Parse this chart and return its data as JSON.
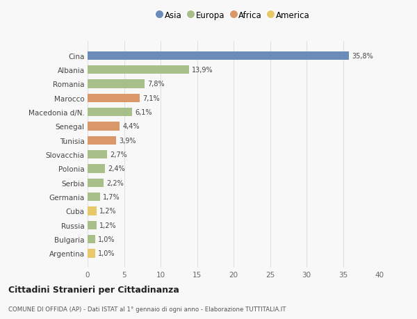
{
  "categories": [
    "Cina",
    "Albania",
    "Romania",
    "Marocco",
    "Macedonia d/N.",
    "Senegal",
    "Tunisia",
    "Slovacchia",
    "Polonia",
    "Serbia",
    "Germania",
    "Cuba",
    "Russia",
    "Bulgaria",
    "Argentina"
  ],
  "values": [
    35.8,
    13.9,
    7.8,
    7.1,
    6.1,
    4.4,
    3.9,
    2.7,
    2.4,
    2.2,
    1.7,
    1.2,
    1.2,
    1.0,
    1.0
  ],
  "labels": [
    "35,8%",
    "13,9%",
    "7,8%",
    "7,1%",
    "6,1%",
    "4,4%",
    "3,9%",
    "2,7%",
    "2,4%",
    "2,2%",
    "1,7%",
    "1,2%",
    "1,2%",
    "1,0%",
    "1,0%"
  ],
  "colors": [
    "#6b8cba",
    "#a8bf8a",
    "#a8bf8a",
    "#d9976a",
    "#a8bf8a",
    "#d9976a",
    "#d9976a",
    "#a8bf8a",
    "#a8bf8a",
    "#a8bf8a",
    "#a8bf8a",
    "#e8c96a",
    "#a8bf8a",
    "#a8bf8a",
    "#e8c96a"
  ],
  "legend_labels": [
    "Asia",
    "Europa",
    "Africa",
    "America"
  ],
  "legend_colors": [
    "#6b8cba",
    "#a8bf8a",
    "#d9976a",
    "#e8c96a"
  ],
  "title1": "Cittadini Stranieri per Cittadinanza",
  "title2": "COMUNE DI OFFIDA (AP) - Dati ISTAT al 1° gennaio di ogni anno - Elaborazione TUTTITALIA.IT",
  "xlim": [
    0,
    40
  ],
  "xticks": [
    0,
    5,
    10,
    15,
    20,
    25,
    30,
    35,
    40
  ],
  "background_color": "#f8f8f8",
  "bar_height": 0.6,
  "grid_color": "#e0e0e0"
}
